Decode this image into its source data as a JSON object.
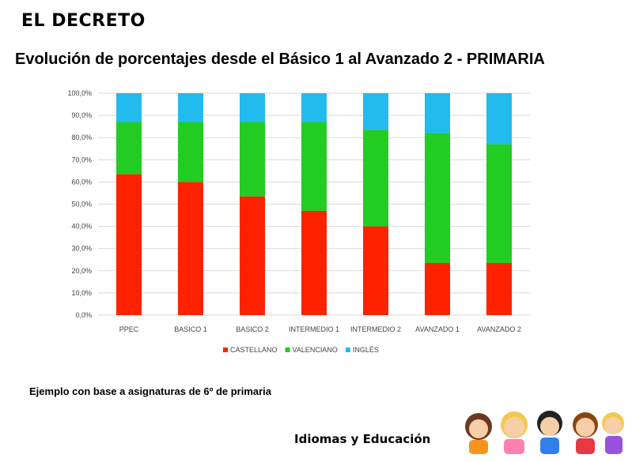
{
  "heading": "EL DECRETO",
  "footnote": "Ejemplo con base a asignaturas de 6º de primaria",
  "brand": "Idiomas y Educación",
  "colors": {
    "castellano": "#ff2200",
    "valenciano": "#22cc22",
    "ingles": "#22bbee"
  },
  "chart_data": {
    "type": "bar",
    "stacked": true,
    "title": "Evolución de porcentajes desde el Básico 1 al Avanzado 2 - PRIMARIA",
    "categories": [
      "PPEC",
      "BASICO 1",
      "BASICO 2",
      "INTERMEDIO 1",
      "INTERMEDIO 2",
      "AVANZADO 1",
      "AVANZADO 2"
    ],
    "series": [
      {
        "name": "CASTELLANO",
        "color": "#ff2200",
        "values": [
          63.5,
          60,
          53.5,
          47,
          40,
          23.5,
          23.5
        ]
      },
      {
        "name": "VALENCIANO",
        "color": "#22cc22",
        "values": [
          23.5,
          27,
          33.5,
          40,
          43.5,
          58.5,
          53.5
        ]
      },
      {
        "name": "INGLÉS",
        "color": "#22bbee",
        "values": [
          13,
          13,
          13,
          13,
          16.5,
          18,
          23
        ]
      }
    ],
    "yticks": [
      "0,0%",
      "10,0%",
      "20,0%",
      "30,0%",
      "40,0%",
      "50,0%",
      "60,0%",
      "70,0%",
      "80,0%",
      "90,0%",
      "100,0%"
    ],
    "ylim": [
      0,
      100
    ],
    "grid": true,
    "legend": "bottom"
  }
}
